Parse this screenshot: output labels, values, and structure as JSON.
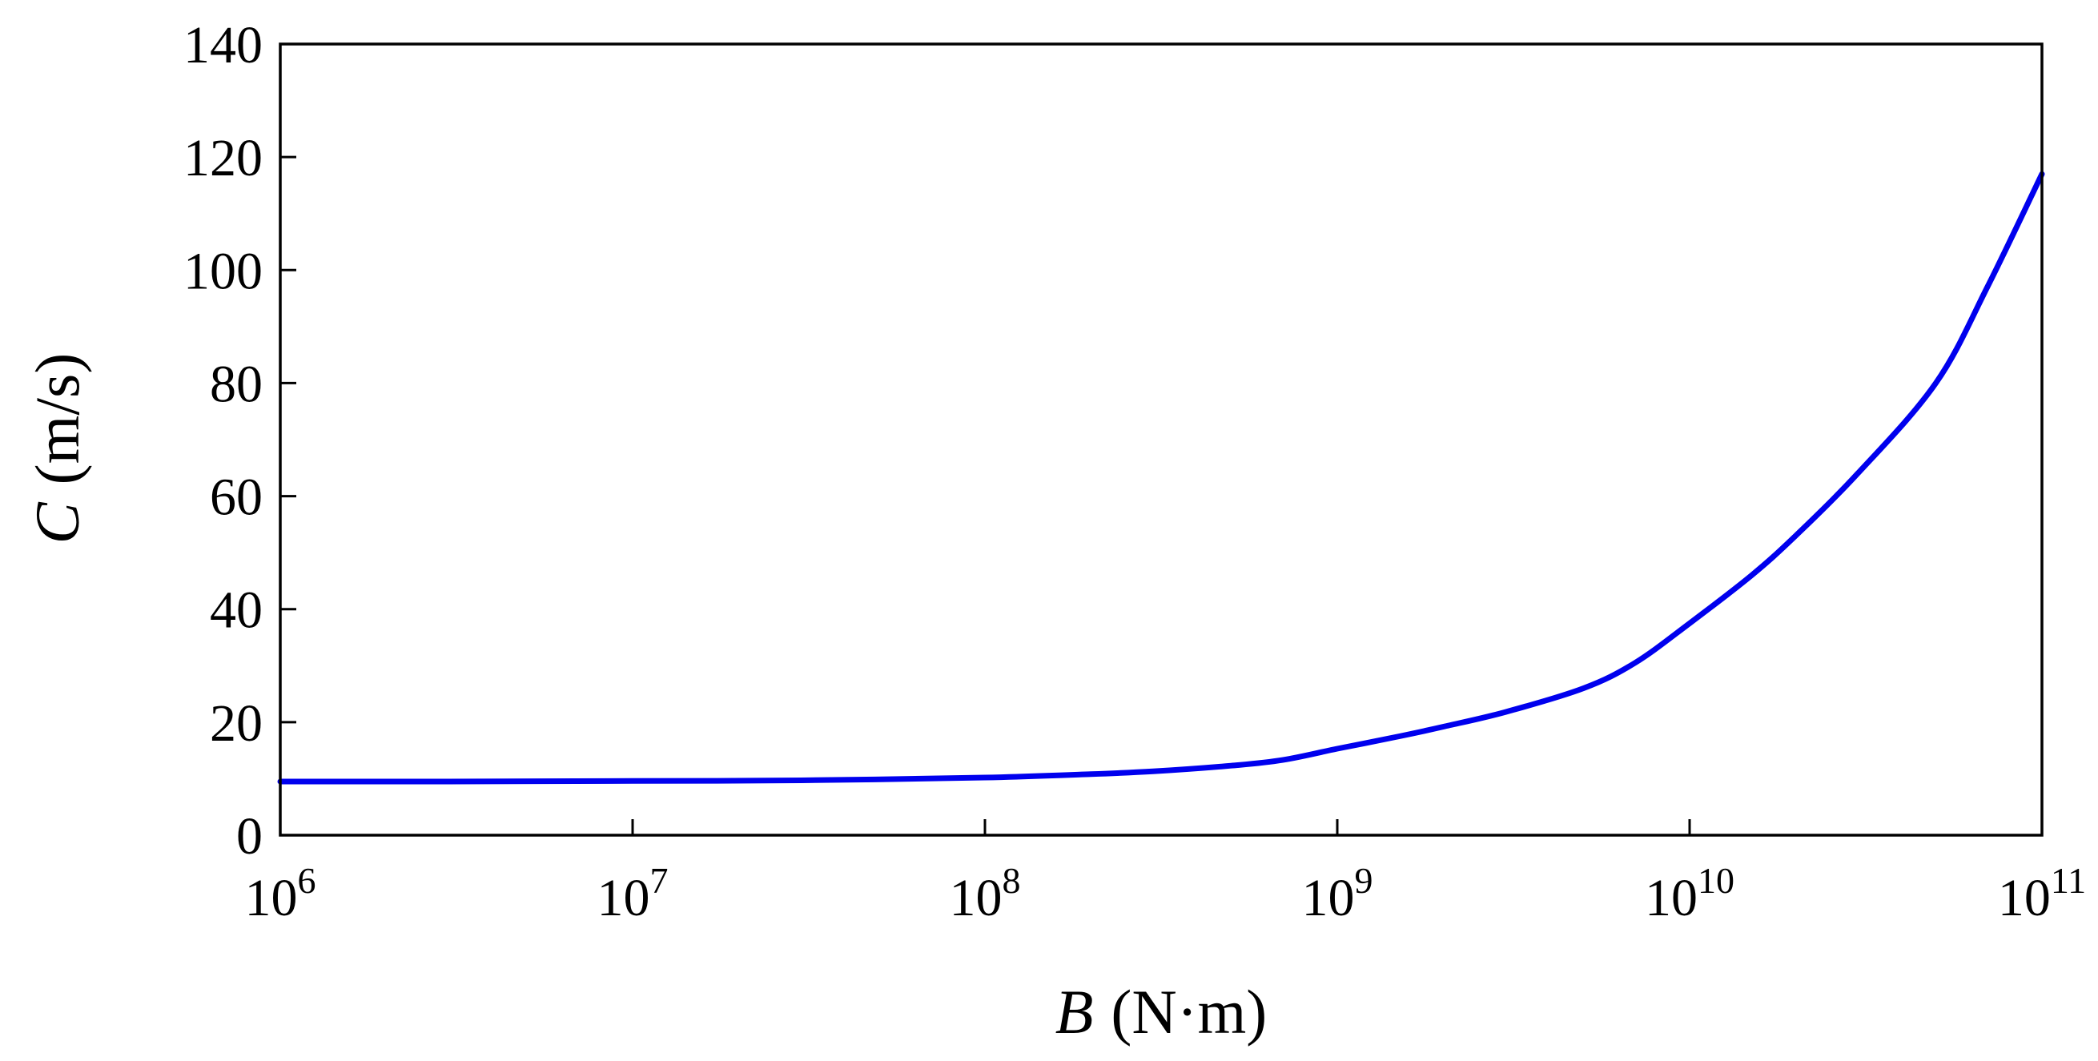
{
  "chart_data": {
    "type": "line",
    "title": "",
    "xlabel": {
      "symbol": "B",
      "unit": "(N·m)"
    },
    "ylabel": {
      "symbol": "C",
      "unit": "(m/s)"
    },
    "x_scale": "log",
    "xlim": [
      1000000,
      100000000000
    ],
    "ylim": [
      0,
      140
    ],
    "x_ticks": [
      {
        "base": "10",
        "exp": "6"
      },
      {
        "base": "10",
        "exp": "7"
      },
      {
        "base": "10",
        "exp": "8"
      },
      {
        "base": "10",
        "exp": "9"
      },
      {
        "base": "10",
        "exp": "10"
      },
      {
        "base": "10",
        "exp": "11"
      }
    ],
    "x_tick_values": [
      1000000,
      10000000,
      100000000,
      1000000000,
      10000000000,
      100000000000
    ],
    "y_ticks": [
      "0",
      "20",
      "40",
      "60",
      "80",
      "100",
      "120",
      "140"
    ],
    "y_tick_values": [
      0,
      20,
      40,
      60,
      80,
      100,
      120,
      140
    ],
    "grid": false,
    "legend": "none",
    "series": [
      {
        "color": "#0000ee",
        "x": [
          1000000,
          3000000,
          10000000,
          30000000,
          100000000,
          200000000,
          300000000,
          500000000,
          700000000,
          1000000000,
          1500000000,
          2000000000,
          3000000000,
          5000000000,
          7000000000,
          10000000000,
          15000000000,
          20000000000,
          30000000000,
          50000000000,
          70000000000,
          100000000000
        ],
        "y": [
          9.5,
          9.5,
          9.6,
          9.7,
          10.2,
          10.8,
          11.3,
          12.3,
          13.3,
          15.3,
          17.5,
          19.2,
          21.8,
          26.0,
          30.5,
          37.5,
          46.0,
          53.0,
          64.0,
          80.0,
          97.0,
          117.0
        ]
      }
    ]
  }
}
